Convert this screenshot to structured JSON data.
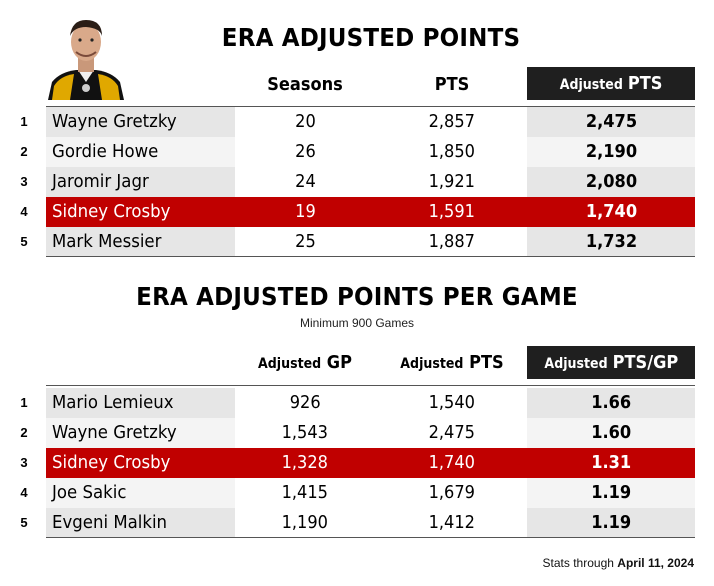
{
  "chart_data": [
    {
      "type": "table",
      "title": "ERA ADJUSTED POINTS",
      "columns": [
        "Seasons",
        "PTS",
        "Adjusted PTS"
      ],
      "header_adjusted_prefix": "Adjusted",
      "header_adjusted_suffix": "PTS",
      "rows": [
        {
          "rank": "1",
          "name": "Wayne Gretzky",
          "seasons": "20",
          "pts": "2,857",
          "adj_pts": "2,475",
          "highlight": false
        },
        {
          "rank": "2",
          "name": "Gordie Howe",
          "seasons": "26",
          "pts": "1,850",
          "adj_pts": "2,190",
          "highlight": false
        },
        {
          "rank": "3",
          "name": "Jaromir Jagr",
          "seasons": "24",
          "pts": "1,921",
          "adj_pts": "2,080",
          "highlight": false
        },
        {
          "rank": "4",
          "name": "Sidney Crosby",
          "seasons": "19",
          "pts": "1,591",
          "adj_pts": "1,740",
          "highlight": true
        },
        {
          "rank": "5",
          "name": "Mark Messier",
          "seasons": "25",
          "pts": "1,887",
          "adj_pts": "1,732",
          "highlight": false
        }
      ]
    },
    {
      "type": "table",
      "title": "ERA ADJUSTED POINTS PER GAME",
      "subtitle": "Minimum 900 Games",
      "header_gp_prefix": "Adjusted",
      "header_gp_suffix": "GP",
      "header_pts_prefix": "Adjusted",
      "header_pts_suffix": "PTS",
      "header_ppg_prefix": "Adjusted",
      "header_ppg_suffix": "PTS/GP",
      "rows": [
        {
          "rank": "1",
          "name": "Mario Lemieux",
          "adj_gp": "926",
          "adj_pts": "1,540",
          "adj_ppg": "1.66",
          "highlight": false
        },
        {
          "rank": "2",
          "name": "Wayne Gretzky",
          "adj_gp": "1,543",
          "adj_pts": "2,475",
          "adj_ppg": "1.60",
          "highlight": false
        },
        {
          "rank": "3",
          "name": "Sidney Crosby",
          "adj_gp": "1,328",
          "adj_pts": "1,740",
          "adj_ppg": "1.31",
          "highlight": true
        },
        {
          "rank": "4",
          "name": "Joe Sakic",
          "adj_gp": "1,415",
          "adj_pts": "1,679",
          "adj_ppg": "1.19",
          "highlight": false
        },
        {
          "rank": "5",
          "name": "Evgeni Malkin",
          "adj_gp": "1,190",
          "adj_pts": "1,412",
          "adj_ppg": "1.19",
          "highlight": false
        }
      ]
    }
  ],
  "colors": {
    "highlight_row": "#c00000",
    "header_dark": "#1f1f1f",
    "row_shade": "#e6e6e6"
  },
  "avatar": {
    "icon": "player-headshot-icon"
  },
  "footer": {
    "prefix": "Stats through",
    "date": "April 11, 2024"
  }
}
